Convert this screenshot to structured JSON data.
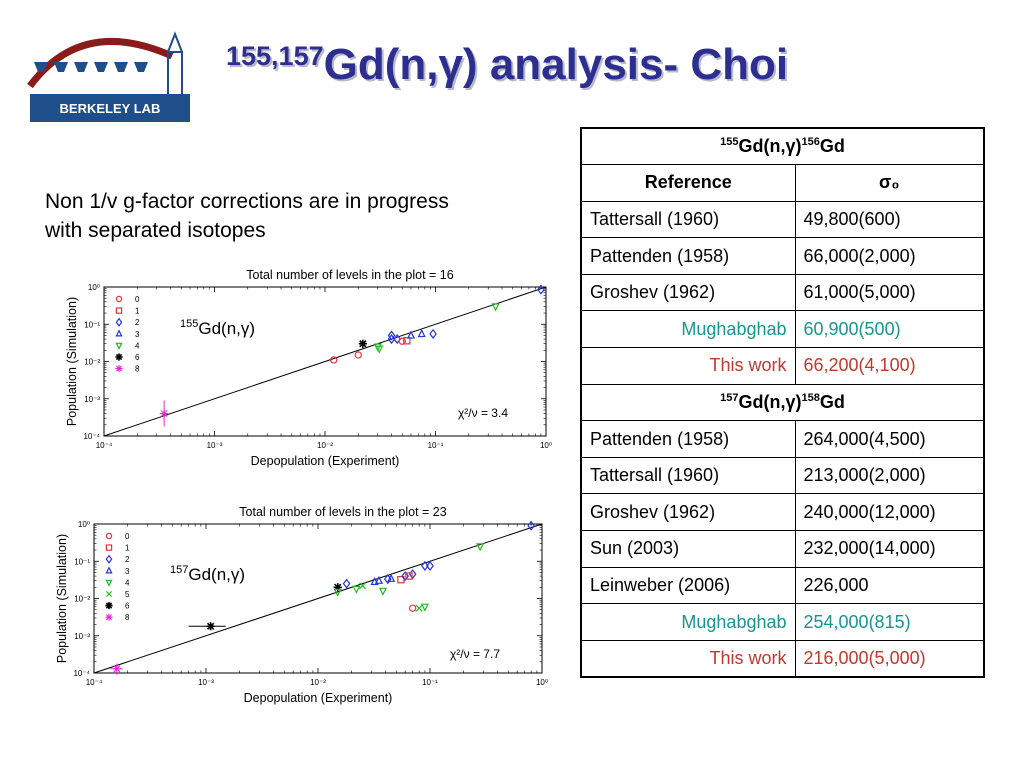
{
  "header": {
    "title_sup": "155,157",
    "title_main": "Gd(n,γ) analysis- Choi",
    "logo_text": "BERKELEY LAB"
  },
  "note": "Non 1/v g-factor corrections are in progress with separated isotopes",
  "table": {
    "gd155_heading": {
      "sup1": "155",
      "mid": "Gd(n,γ)",
      "sup2": "156",
      "end": "Gd"
    },
    "col_reference": "Reference",
    "col_sigma": "σ₀",
    "gd155_rows": [
      {
        "ref": "Tattersall (1960)",
        "value": "49,800(600)",
        "style": "normal"
      },
      {
        "ref": "Pattenden (1958)",
        "value": "66,000(2,000)",
        "style": "normal"
      },
      {
        "ref": "Groshev (1962)",
        "value": "61,000(5,000)",
        "style": "normal"
      },
      {
        "ref": "Mughabghab",
        "value": "60,900(500)",
        "style": "mug"
      },
      {
        "ref": "This work",
        "value": "66,200(4,100)",
        "style": "work"
      }
    ],
    "gd157_heading": {
      "sup1": "157",
      "mid": "Gd(n,γ)",
      "sup2": "158",
      "end": "Gd"
    },
    "gd157_rows": [
      {
        "ref": "Pattenden (1958)",
        "value": "264,000(4,500)",
        "style": "normal"
      },
      {
        "ref": "Tattersall (1960)",
        "value": "213,000(2,000)",
        "style": "normal"
      },
      {
        "ref": "Groshev (1962)",
        "value": "240,000(12,000)",
        "style": "normal"
      },
      {
        "ref": "Sun (2003)",
        "value": "232,000(14,000)",
        "style": "normal"
      },
      {
        "ref": "Leinweber (2006)",
        "value": "226,000",
        "style": "normal"
      },
      {
        "ref": "Mughabghab",
        "value": "254,000(815)",
        "style": "mug"
      },
      {
        "ref": "This work",
        "value": "216,000(5,000)",
        "style": "work"
      }
    ]
  },
  "colors": {
    "title": "#2c2f8f",
    "mughabghab": "#16968f",
    "this_work": "#c0392b",
    "logo_blue": "#1e4f8a",
    "logo_red": "#8b1a1a"
  },
  "chart_data": [
    {
      "type": "scatter",
      "title": "Total number of levels in the plot = 16",
      "xlabel": "Depopulation (Experiment)",
      "ylabel": "Population (Simulation)",
      "x_scale": "log",
      "y_scale": "log",
      "xlim": [
        0.0001,
        1
      ],
      "ylim": [
        0.0001,
        1
      ],
      "x_ticks": [
        "10⁻⁴",
        "10⁻³",
        "10⁻²",
        "10⁻¹",
        "10⁰"
      ],
      "y_ticks": [
        "10⁻⁴",
        "10⁻³",
        "10⁻²",
        "10⁻¹",
        "10⁰"
      ],
      "inset_label": {
        "sup": "155",
        "text": "Gd(n,γ)"
      },
      "chi_label": "χ²/ν =  3.4",
      "reference_line": {
        "from": [
          0.0001,
          0.0001
        ],
        "to": [
          1,
          1
        ]
      },
      "legend": [
        {
          "label": "0",
          "marker": "circle",
          "color": "#e8303a"
        },
        {
          "label": "1",
          "marker": "square",
          "color": "#e8303a"
        },
        {
          "label": "2",
          "marker": "diamond",
          "color": "#2233dd"
        },
        {
          "label": "3",
          "marker": "triangle-up",
          "color": "#2233dd"
        },
        {
          "label": "4",
          "marker": "triangle-down",
          "color": "#22bb22"
        },
        {
          "label": "6",
          "marker": "star",
          "color": "#000000"
        },
        {
          "label": "8",
          "marker": "asterisk",
          "color": "#ee22dd"
        }
      ],
      "points": [
        {
          "x": 0.00035,
          "y": 0.0004,
          "group": "8",
          "xerr": 3e-05,
          "ylo": 0.00018,
          "yhi": 0.0009
        },
        {
          "x": 0.012,
          "y": 0.011,
          "group": "0"
        },
        {
          "x": 0.02,
          "y": 0.015,
          "group": "0"
        },
        {
          "x": 0.022,
          "y": 0.03,
          "group": "6"
        },
        {
          "x": 0.03,
          "y": 0.025,
          "group": "4"
        },
        {
          "x": 0.031,
          "y": 0.022,
          "group": "4"
        },
        {
          "x": 0.04,
          "y": 0.05,
          "group": "2"
        },
        {
          "x": 0.045,
          "y": 0.04,
          "group": "2"
        },
        {
          "x": 0.05,
          "y": 0.035,
          "group": "0"
        },
        {
          "x": 0.055,
          "y": 0.036,
          "group": "1"
        },
        {
          "x": 0.06,
          "y": 0.05,
          "group": "3"
        },
        {
          "x": 0.075,
          "y": 0.055,
          "group": "3"
        },
        {
          "x": 0.095,
          "y": 0.055,
          "group": "2"
        },
        {
          "x": 0.35,
          "y": 0.3,
          "group": "4"
        },
        {
          "x": 0.9,
          "y": 0.85,
          "group": "2"
        },
        {
          "x": 0.04,
          "y": 0.04,
          "group": "2"
        }
      ]
    },
    {
      "type": "scatter",
      "title": "Total number of levels in the plot = 23",
      "xlabel": "Depopulation (Experiment)",
      "ylabel": "Population (Simulation)",
      "x_scale": "log",
      "y_scale": "log",
      "xlim": [
        0.0001,
        1
      ],
      "ylim": [
        0.0001,
        1
      ],
      "x_ticks": [
        "10⁻⁴",
        "10⁻³",
        "10⁻²",
        "10⁻¹",
        "10⁰"
      ],
      "y_ticks": [
        "10⁻⁴",
        "10⁻³",
        "10⁻²",
        "10⁻¹",
        "10⁰"
      ],
      "inset_label": {
        "sup": "157",
        "text": "Gd(n,γ)"
      },
      "chi_label": "χ²/ν =  7.7",
      "reference_line": {
        "from": [
          0.0001,
          0.0001
        ],
        "to": [
          1,
          1
        ]
      },
      "legend": [
        {
          "label": "0",
          "marker": "circle",
          "color": "#e8303a"
        },
        {
          "label": "1",
          "marker": "square",
          "color": "#e8303a"
        },
        {
          "label": "2",
          "marker": "diamond",
          "color": "#2233dd"
        },
        {
          "label": "3",
          "marker": "triangle-up",
          "color": "#2233dd"
        },
        {
          "label": "4",
          "marker": "triangle-down",
          "color": "#22bb22"
        },
        {
          "label": "5",
          "marker": "cross",
          "color": "#22bb22"
        },
        {
          "label": "6",
          "marker": "star",
          "color": "#000000"
        },
        {
          "label": "8",
          "marker": "asterisk",
          "color": "#ee22dd"
        }
      ],
      "points": [
        {
          "x": 0.00016,
          "y": 0.00013,
          "group": "8",
          "xerr": 2e-05,
          "ylo": 9e-05,
          "yhi": 0.00018
        },
        {
          "x": 0.0011,
          "y": 0.0018,
          "group": "6",
          "xerr": 0.0004
        },
        {
          "x": 0.07,
          "y": 0.0055,
          "group": "0"
        },
        {
          "x": 0.08,
          "y": 0.0055,
          "group": "5"
        },
        {
          "x": 0.09,
          "y": 0.006,
          "group": "4"
        },
        {
          "x": 0.015,
          "y": 0.02,
          "group": "6"
        },
        {
          "x": 0.015,
          "y": 0.015,
          "group": "4"
        },
        {
          "x": 0.018,
          "y": 0.025,
          "group": "2"
        },
        {
          "x": 0.022,
          "y": 0.018,
          "group": "4"
        },
        {
          "x": 0.025,
          "y": 0.022,
          "group": "5"
        },
        {
          "x": 0.035,
          "y": 0.03,
          "group": "3"
        },
        {
          "x": 0.038,
          "y": 0.016,
          "group": "4"
        },
        {
          "x": 0.042,
          "y": 0.033,
          "group": "2"
        },
        {
          "x": 0.045,
          "y": 0.034,
          "group": "3"
        },
        {
          "x": 0.055,
          "y": 0.032,
          "group": "1"
        },
        {
          "x": 0.06,
          "y": 0.04,
          "group": "2"
        },
        {
          "x": 0.07,
          "y": 0.045,
          "group": "2"
        },
        {
          "x": 0.09,
          "y": 0.075,
          "group": "2"
        },
        {
          "x": 0.1,
          "y": 0.075,
          "group": "2"
        },
        {
          "x": 0.28,
          "y": 0.25,
          "group": "4"
        },
        {
          "x": 0.8,
          "y": 0.9,
          "group": "2"
        },
        {
          "x": 0.065,
          "y": 0.04,
          "group": "1"
        },
        {
          "x": 0.032,
          "y": 0.028,
          "group": "3"
        }
      ]
    }
  ]
}
